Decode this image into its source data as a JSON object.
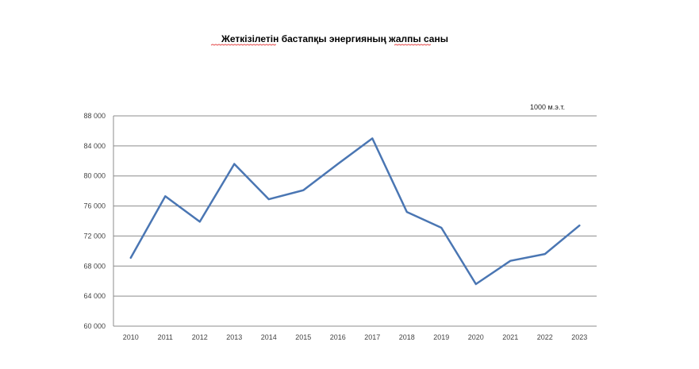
{
  "chart_data": {
    "type": "line",
    "title": "Жеткізілетін бастапқы энергияның жалпы саны",
    "unit_label": "1000 м.э.т.",
    "x": [
      "2010",
      "2011",
      "2012",
      "2013",
      "2014",
      "2015",
      "2016",
      "2017",
      "2018",
      "2019",
      "2020",
      "2021",
      "2022",
      "2023"
    ],
    "series": [
      {
        "values": [
          69100,
          77300,
          73900,
          81600,
          76900,
          78100,
          81600,
          85000,
          75200,
          73100,
          65600,
          68700,
          69600,
          73400
        ]
      }
    ],
    "ylim": [
      60000,
      88000
    ],
    "yticks": [
      60000,
      64000,
      68000,
      72000,
      76000,
      80000,
      84000,
      88000
    ],
    "ytick_labels": [
      "60 000",
      "64 000",
      "68 000",
      "72 000",
      "76 000",
      "80 000",
      "84 000",
      "88 000"
    ],
    "grid": true,
    "legend": "none",
    "colors": {
      "line": "#4a76b3",
      "grid": "#8c8c8c",
      "axis": "#8c8c8c"
    }
  }
}
